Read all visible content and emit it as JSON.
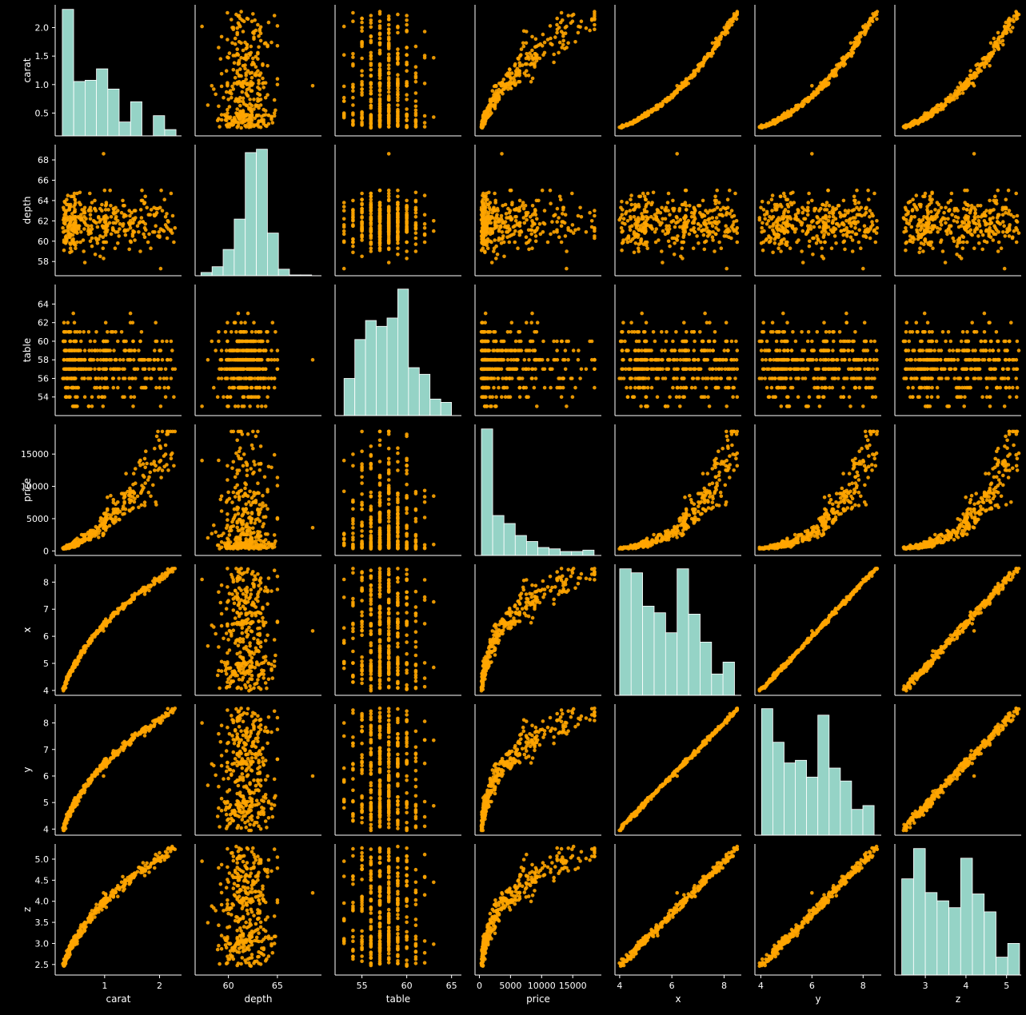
{
  "chart_data": {
    "type": "scatter",
    "title": "",
    "kind": "pairplot",
    "diag_kind": "histogram",
    "variables": [
      "carat",
      "depth",
      "table",
      "price",
      "x",
      "y",
      "z"
    ],
    "axis_labels": {
      "carat": "carat",
      "depth": "depth",
      "table": "table",
      "price": "price",
      "x": "x",
      "y": "y",
      "z": "z"
    },
    "ranges": {
      "carat": [
        0.1,
        2.4
      ],
      "depth": [
        56.6,
        69.5
      ],
      "table": [
        52.0,
        66.1
      ],
      "price": [
        -700,
        19600
      ],
      "x": [
        3.82,
        8.66
      ],
      "y": [
        3.77,
        8.71
      ],
      "z": [
        2.25,
        5.36
      ]
    },
    "ticks": {
      "carat": [
        0.5,
        1.0,
        1.5,
        2.0
      ],
      "depth": [
        58,
        60,
        62,
        64,
        66,
        68
      ],
      "table": [
        54,
        56,
        58,
        60,
        62,
        64
      ],
      "price": [
        0,
        5000,
        10000,
        15000
      ],
      "x": [
        4,
        5,
        6,
        7,
        8
      ],
      "y": [
        4,
        5,
        6,
        7,
        8
      ],
      "z": [
        2.5,
        3.0,
        3.5,
        4.0,
        4.5,
        5.0
      ]
    },
    "ticks_bottom": {
      "carat": [
        1,
        2
      ],
      "depth": [
        60,
        65
      ],
      "table": [
        55,
        60,
        65
      ],
      "price": [
        0,
        5000,
        10000,
        15000
      ],
      "x": [
        4,
        6,
        8
      ],
      "y": [
        4,
        6,
        8
      ],
      "z": [
        3,
        4,
        5
      ]
    },
    "tick_labels": {
      "carat": [
        "0.5",
        "1.0",
        "1.5",
        "2.0"
      ],
      "depth": [
        "58",
        "60",
        "62",
        "64",
        "66",
        "68"
      ],
      "table": [
        "54",
        "56",
        "58",
        "60",
        "62",
        "64"
      ],
      "price": [
        "0",
        "5000",
        "10000",
        "15000"
      ],
      "x": [
        "4",
        "5",
        "6",
        "7",
        "8"
      ],
      "y": [
        "4",
        "5",
        "6",
        "7",
        "8"
      ],
      "z": [
        "2.5",
        "3.0",
        "3.5",
        "4.0",
        "4.5",
        "5.0"
      ]
    },
    "tick_labels_bottom": {
      "carat": [
        "1",
        "2"
      ],
      "depth": [
        "60",
        "65"
      ],
      "table": [
        "55",
        "60",
        "65"
      ],
      "price": [
        "0",
        "5000",
        "10000",
        "15000"
      ],
      "x": [
        "4",
        "6",
        "8"
      ],
      "y": [
        "4",
        "6",
        "8"
      ],
      "z": [
        "3",
        "4",
        "5"
      ]
    },
    "histograms": {
      "carat": {
        "edges": [
          0.23,
          0.437,
          0.644,
          0.851,
          1.058,
          1.265,
          1.472,
          1.679,
          1.886,
          2.093,
          2.3
        ],
        "counts": [
          100,
          43,
          44,
          53,
          37,
          11,
          27,
          0,
          16,
          5
        ]
      },
      "depth": {
        "edges": [
          57.2,
          58.33,
          59.46,
          60.59,
          61.72,
          62.85,
          63.98,
          65.11,
          66.24,
          67.37,
          68.5
        ],
        "counts": [
          4,
          11,
          32,
          69,
          150,
          154,
          52,
          8,
          1,
          1
        ]
      },
      "table": {
        "edges": [
          53,
          54.2,
          55.4,
          56.6,
          57.8,
          59,
          60.2,
          61.4,
          62.6,
          63.8,
          65
        ],
        "counts": [
          45,
          92,
          115,
          108,
          118,
          153,
          58,
          50,
          20,
          16
        ]
      },
      "price": {
        "edges": [
          330,
          2140,
          3950,
          5760,
          7570,
          9380,
          11190,
          13000,
          14810,
          16620,
          18430
        ],
        "counts": [
          190,
          60,
          48,
          30,
          21,
          12,
          10,
          6,
          6,
          8
        ]
      },
      "x": {
        "edges": [
          4.0,
          4.44,
          4.88,
          5.32,
          5.76,
          6.2,
          6.64,
          7.08,
          7.52,
          7.96,
          8.4
        ],
        "counts": [
          95,
          92,
          67,
          62,
          47,
          95,
          61,
          40,
          16,
          25
        ]
      },
      "y": {
        "edges": [
          4.03,
          4.47,
          4.91,
          5.35,
          5.79,
          6.23,
          6.67,
          7.11,
          7.55,
          7.99,
          8.43
        ],
        "counts": [
          98,
          72,
          56,
          58,
          45,
          93,
          52,
          42,
          20,
          23
        ]
      },
      "z": {
        "edges": [
          2.42,
          2.71,
          3.0,
          3.29,
          3.58,
          3.87,
          4.16,
          4.45,
          4.74,
          5.03,
          5.32
        ],
        "counts": [
          70,
          92,
          60,
          54,
          49,
          85,
          59,
          46,
          13,
          23
        ]
      }
    },
    "grid": false,
    "legend": "none",
    "point_color": "#ffa500",
    "hist_color": "#95d3c6"
  }
}
